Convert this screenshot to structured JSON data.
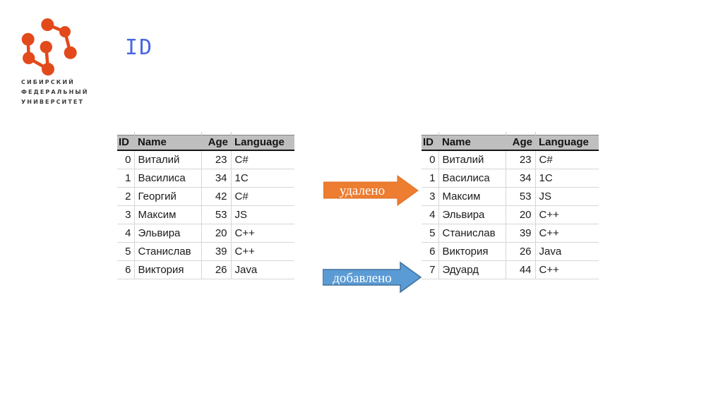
{
  "logo": {
    "org_lines": [
      "СИБИРСКИЙ",
      "ФЕДЕРАЛЬНЫЙ",
      "УНИВЕРСИТЕТ"
    ],
    "brand_color": "#e34a1b"
  },
  "title": {
    "text": "ID",
    "color": "#4a68e1"
  },
  "tables": {
    "before": {
      "columns": [
        "ID",
        "Name",
        "Age",
        "Language"
      ],
      "rows": [
        [
          "0",
          "Виталий",
          "23",
          "C#"
        ],
        [
          "1",
          "Василиса",
          "34",
          "1C"
        ],
        [
          "2",
          "Георгий",
          "42",
          "C#"
        ],
        [
          "3",
          "Максим",
          "53",
          "JS"
        ],
        [
          "4",
          "Эльвира",
          "20",
          "C++"
        ],
        [
          "5",
          "Станислав",
          "39",
          "C++"
        ],
        [
          "6",
          "Виктория",
          "26",
          "Java"
        ]
      ]
    },
    "after": {
      "columns": [
        "ID",
        "Name",
        "Age",
        "Language"
      ],
      "rows": [
        [
          "0",
          "Виталий",
          "23",
          "C#"
        ],
        [
          "1",
          "Василиса",
          "34",
          "1C"
        ],
        [
          "3",
          "Максим",
          "53",
          "JS"
        ],
        [
          "4",
          "Эльвира",
          "20",
          "C++"
        ],
        [
          "5",
          "Станислав",
          "39",
          "C++"
        ],
        [
          "6",
          "Виктория",
          "26",
          "Java"
        ],
        [
          "7",
          "Эдуард",
          "44",
          "C++"
        ]
      ]
    }
  },
  "arrows": {
    "deleted": {
      "label": "удалено",
      "fill": "#ed7d31",
      "stroke": "#e06c1f"
    },
    "added": {
      "label": "добавлено",
      "fill": "#5b9bd5",
      "stroke": "#41719c"
    }
  }
}
